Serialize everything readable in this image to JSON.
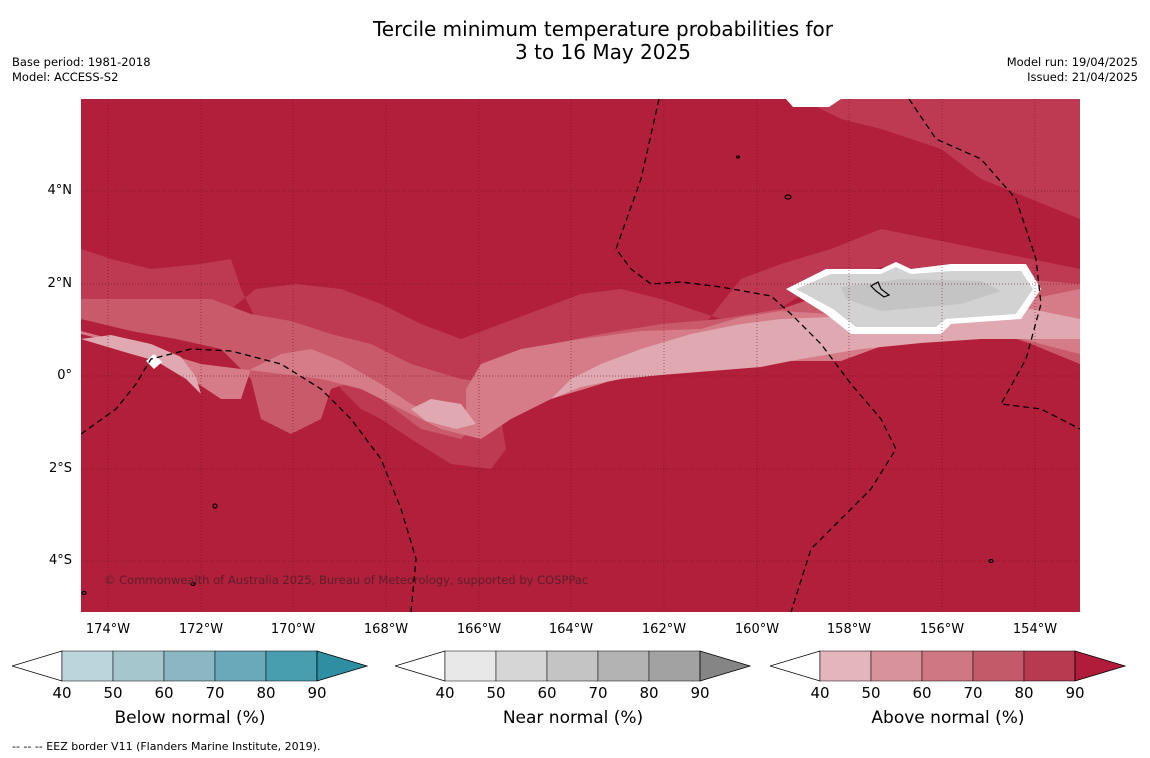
{
  "title_line1": "Tercile minimum temperature probabilities for",
  "title_line2": "3 to 16 May 2025",
  "base_period": "Base period: 1981-2018",
  "model": "Model: ACCESS-S2",
  "model_run": "Model run: 19/04/2025",
  "issued": "Issued: 21/04/2025",
  "copyright": "© Commonwealth of Australia 2025, Bureau of Meteorology, supported by COSPPac",
  "footnote": "--  --  -- EEZ border V11 (Flanders Marine Institute, 2019).",
  "lat_ticks": [
    "4°N",
    "2°N",
    "0°",
    "2°S",
    "4°S"
  ],
  "lon_ticks": [
    "174°W",
    "172°W",
    "170°W",
    "168°W",
    "166°W",
    "164°W",
    "162°W",
    "160°W",
    "158°W",
    "156°W",
    "154°W"
  ],
  "colorbars": [
    {
      "label": "Below normal (%)",
      "ticks": [
        "40",
        "50",
        "60",
        "70",
        "80",
        "90"
      ],
      "colors": [
        "#bcd4dc",
        "#a6c6cd",
        "#8bb6c3",
        "#6aa9b9",
        "#489eaf",
        "#2e8fa3"
      ],
      "low_color": "#ffffff"
    },
    {
      "label": "Near normal (%)",
      "ticks": [
        "40",
        "50",
        "60",
        "70",
        "80",
        "90"
      ],
      "colors": [
        "#e8e8e8",
        "#d6d6d6",
        "#c4c4c4",
        "#b3b3b3",
        "#a2a2a2",
        "#858585"
      ],
      "low_color": "#ffffff"
    },
    {
      "label": "Above normal (%)",
      "ticks": [
        "40",
        "50",
        "60",
        "70",
        "80",
        "90"
      ],
      "colors": [
        "#e3b6bd",
        "#d8929c",
        "#cf7782",
        "#c35a69",
        "#b83a50",
        "#b01c3a"
      ],
      "low_color": "#ffffff"
    }
  ],
  "map_colors": {
    "above_80_90": "#b21f3a",
    "above_70_80": "#be3a52",
    "above_60_70": "#c95a6a",
    "above_50_60": "#d67b88",
    "above_40_50": "#e0a8b1",
    "near_40_50": "#d2d2d2",
    "near_50_60": "#c4c4c4",
    "low": "#ffffff"
  }
}
